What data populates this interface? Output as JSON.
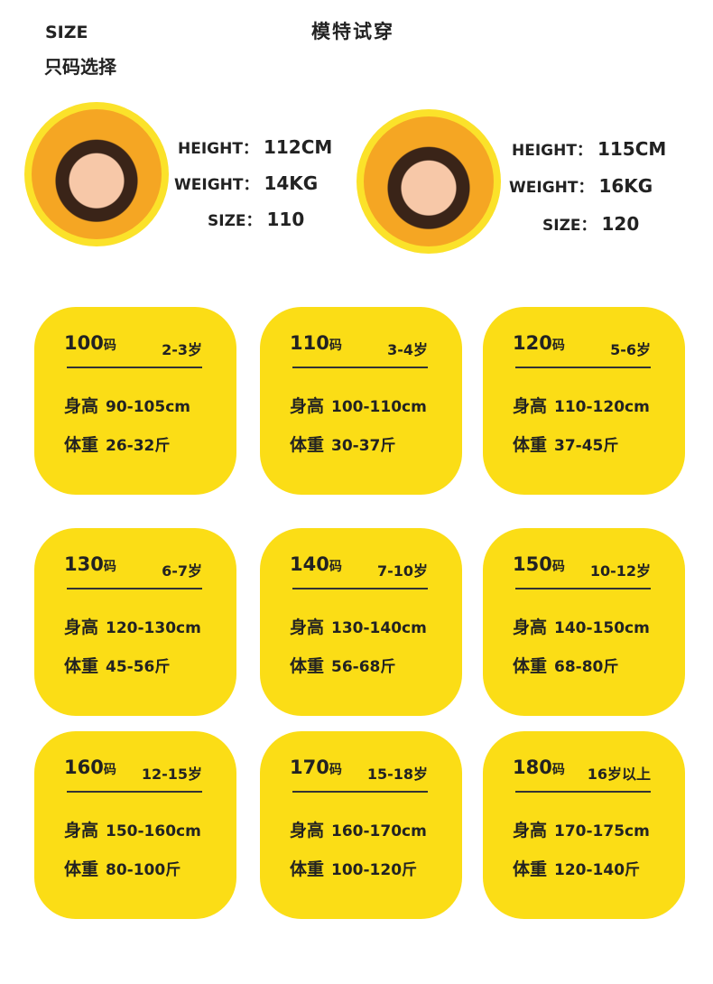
{
  "header": {
    "size_en": "SIZE",
    "size_cn": "只码选择",
    "model_title": "模特试穿"
  },
  "models": [
    {
      "height_label": "HEIGHT：",
      "height": "112CM",
      "weight_label": "WEIGHT：",
      "weight": "14KG",
      "size_label": "SIZE：",
      "size": "110"
    },
    {
      "height_label": "HEIGHT：",
      "height": "115CM",
      "weight_label": "WEIGHT：",
      "weight": "16KG",
      "size_label": "SIZE：",
      "size": "120"
    }
  ],
  "card_color": "#fbdd16",
  "height_label": "身高",
  "weight_label": "体重",
  "size_unit": "码",
  "sizes": [
    {
      "size": "100",
      "age": "2-3岁",
      "height": "90-105cm",
      "weight": "26-32斤"
    },
    {
      "size": "110",
      "age": "3-4岁",
      "height": "100-110cm",
      "weight": "30-37斤"
    },
    {
      "size": "120",
      "age": "5-6岁",
      "height": "110-120cm",
      "weight": "37-45斤"
    },
    {
      "size": "130",
      "age": "6-7岁",
      "height": "120-130cm",
      "weight": "45-56斤"
    },
    {
      "size": "140",
      "age": "7-10岁",
      "height": "130-140cm",
      "weight": "56-68斤"
    },
    {
      "size": "150",
      "age": "10-12岁",
      "height": "140-150cm",
      "weight": "68-80斤"
    },
    {
      "size": "160",
      "age": "12-15岁",
      "height": "150-160cm",
      "weight": "80-100斤"
    },
    {
      "size": "170",
      "age": "15-18岁",
      "height": "160-170cm",
      "weight": "100-120斤"
    },
    {
      "size": "180",
      "age": "16岁以上",
      "height": "170-175cm",
      "weight": "120-140斤"
    }
  ]
}
